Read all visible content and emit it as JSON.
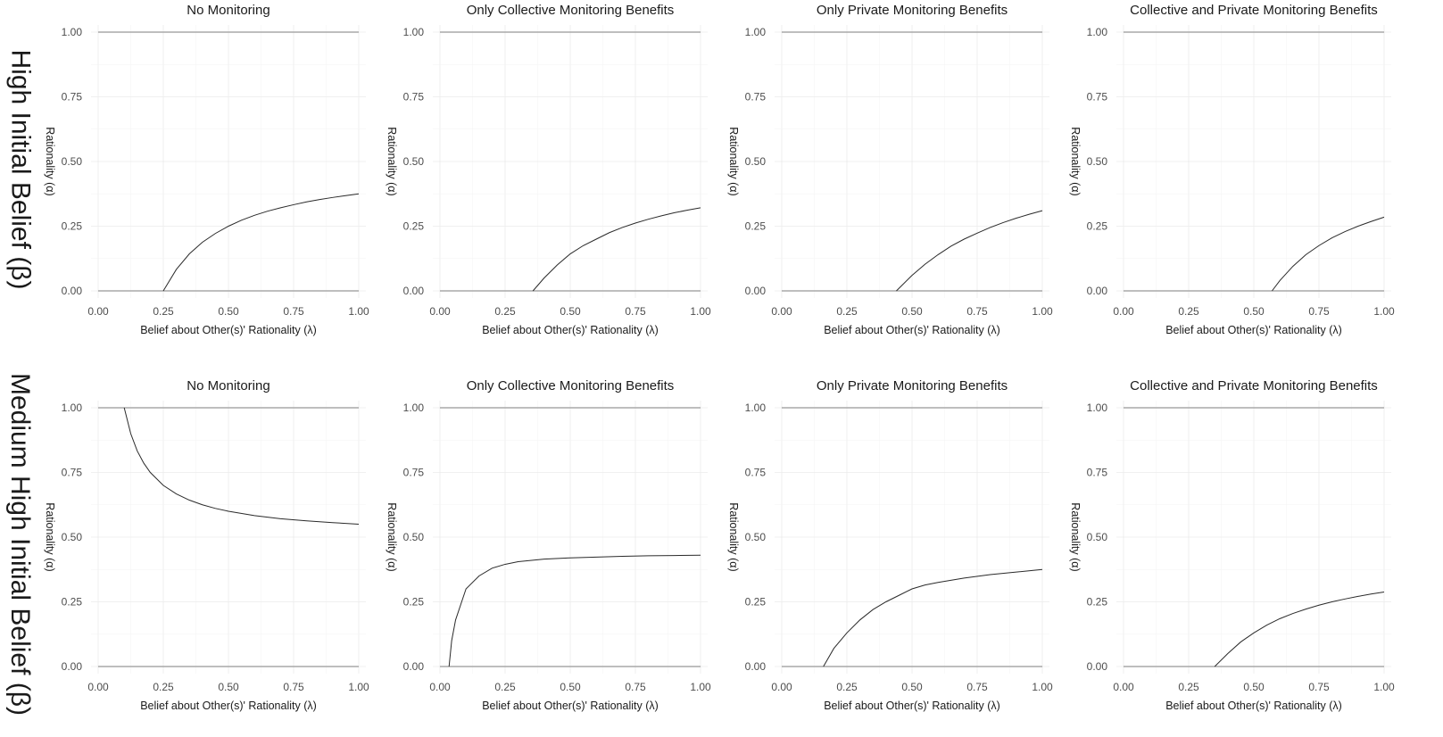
{
  "rows": [
    {
      "label": "High Initial Belief (β)"
    },
    {
      "label": "Medium High Initial Belief (β)"
    }
  ],
  "colors": {
    "curve": "#2a2a2a",
    "boundary": "#a9a9a9",
    "grid": "#ebebeb",
    "text": "#1a1a1a"
  },
  "chart_data": [
    {
      "type": "line",
      "title": "No Monitoring",
      "xlabel": "Belief about Other(s)' Rationality (λ)",
      "ylabel": "Rationality (α)",
      "xlim": [
        0,
        1
      ],
      "ylim": [
        0,
        1
      ],
      "xticks": [
        "0.00",
        "0.25",
        "0.50",
        "0.75",
        "1.00"
      ],
      "yticks": [
        "0.00",
        "0.25",
        "0.50",
        "0.75",
        "1.00"
      ],
      "boundaries": [
        0,
        1
      ],
      "series": [
        {
          "x": [
            0.25,
            0.3,
            0.35,
            0.4,
            0.45,
            0.5,
            0.55,
            0.6,
            0.65,
            0.7,
            0.75,
            0.8,
            0.85,
            0.9,
            0.95,
            1.0
          ],
          "y": [
            0.0,
            0.083,
            0.143,
            0.188,
            0.222,
            0.25,
            0.273,
            0.292,
            0.308,
            0.321,
            0.333,
            0.344,
            0.353,
            0.361,
            0.368,
            0.375
          ]
        }
      ]
    },
    {
      "type": "line",
      "title": "Only Collective Monitoring Benefits",
      "xlabel": "Belief about Other(s)' Rationality (λ)",
      "ylabel": "Rationality (α)",
      "xlim": [
        0,
        1
      ],
      "ylim": [
        0,
        1
      ],
      "xticks": [
        "0.00",
        "0.25",
        "0.50",
        "0.75",
        "1.00"
      ],
      "yticks": [
        "0.00",
        "0.25",
        "0.50",
        "0.75",
        "1.00"
      ],
      "boundaries": [
        0,
        1
      ],
      "series": [
        {
          "x": [
            0.357,
            0.4,
            0.45,
            0.5,
            0.55,
            0.6,
            0.65,
            0.7,
            0.75,
            0.8,
            0.85,
            0.9,
            0.95,
            1.0
          ],
          "y": [
            0.0,
            0.05,
            0.1,
            0.143,
            0.175,
            0.2,
            0.225,
            0.245,
            0.262,
            0.277,
            0.29,
            0.302,
            0.312,
            0.321
          ]
        }
      ]
    },
    {
      "type": "line",
      "title": "Only Private Monitoring Benefits",
      "xlabel": "Belief about Other(s)' Rationality (λ)",
      "ylabel": "Rationality (α)",
      "xlim": [
        0,
        1
      ],
      "ylim": [
        0,
        1
      ],
      "xticks": [
        "0.00",
        "0.25",
        "0.50",
        "0.75",
        "1.00"
      ],
      "yticks": [
        "0.00",
        "0.25",
        "0.50",
        "0.75",
        "1.00"
      ],
      "boundaries": [
        0,
        1
      ],
      "series": [
        {
          "x": [
            0.44,
            0.5,
            0.55,
            0.6,
            0.65,
            0.7,
            0.75,
            0.8,
            0.85,
            0.9,
            0.95,
            1.0
          ],
          "y": [
            0.0,
            0.06,
            0.103,
            0.14,
            0.173,
            0.2,
            0.223,
            0.245,
            0.264,
            0.281,
            0.296,
            0.31
          ]
        }
      ]
    },
    {
      "type": "line",
      "title": "Collective and Private Monitoring Benefits",
      "xlabel": "Belief about Other(s)' Rationality (λ)",
      "ylabel": "Rationality (α)",
      "xlim": [
        0,
        1
      ],
      "ylim": [
        0,
        1
      ],
      "xticks": [
        "0.00",
        "0.25",
        "0.50",
        "0.75",
        "1.00"
      ],
      "yticks": [
        "0.00",
        "0.25",
        "0.50",
        "0.75",
        "1.00"
      ],
      "boundaries": [
        0,
        1
      ],
      "series": [
        {
          "x": [
            0.57,
            0.6,
            0.65,
            0.7,
            0.75,
            0.8,
            0.85,
            0.9,
            0.95,
            1.0
          ],
          "y": [
            0.0,
            0.04,
            0.095,
            0.14,
            0.175,
            0.205,
            0.229,
            0.25,
            0.268,
            0.285
          ]
        }
      ]
    },
    {
      "type": "line",
      "title": "No Monitoring",
      "xlabel": "Belief about Other(s)' Rationality (λ)",
      "ylabel": "Rationality (α)",
      "xlim": [
        0,
        1
      ],
      "ylim": [
        0,
        1
      ],
      "xticks": [
        "0.00",
        "0.25",
        "0.50",
        "0.75",
        "1.00"
      ],
      "yticks": [
        "0.00",
        "0.25",
        "0.50",
        "0.75",
        "1.00"
      ],
      "boundaries": [
        0,
        1
      ],
      "series": [
        {
          "x": [
            0.1,
            0.125,
            0.15,
            0.175,
            0.2,
            0.25,
            0.3,
            0.35,
            0.4,
            0.45,
            0.5,
            0.6,
            0.7,
            0.8,
            0.9,
            1.0
          ],
          "y": [
            1.0,
            0.9,
            0.833,
            0.786,
            0.75,
            0.7,
            0.667,
            0.643,
            0.625,
            0.611,
            0.6,
            0.583,
            0.571,
            0.563,
            0.556,
            0.55
          ]
        }
      ]
    },
    {
      "type": "line",
      "title": "Only Collective Monitoring Benefits",
      "xlabel": "Belief about Other(s)' Rationality (λ)",
      "ylabel": "Rationality (α)",
      "xlim": [
        0,
        1
      ],
      "ylim": [
        0,
        1
      ],
      "xticks": [
        "0.00",
        "0.25",
        "0.50",
        "0.75",
        "1.00"
      ],
      "yticks": [
        "0.00",
        "0.25",
        "0.50",
        "0.75",
        "1.00"
      ],
      "boundaries": [
        0,
        1
      ],
      "series": [
        {
          "x": [
            0.035,
            0.045,
            0.06,
            0.08,
            0.1,
            0.15,
            0.2,
            0.25,
            0.3,
            0.4,
            0.5,
            0.6,
            0.7,
            0.8,
            0.9,
            1.0
          ],
          "y": [
            0.0,
            0.1,
            0.18,
            0.24,
            0.3,
            0.35,
            0.38,
            0.395,
            0.405,
            0.415,
            0.42,
            0.423,
            0.426,
            0.428,
            0.429,
            0.43
          ]
        }
      ]
    },
    {
      "type": "line",
      "title": "Only Private Monitoring Benefits",
      "xlabel": "Belief about Other(s)' Rationality (λ)",
      "ylabel": "Rationality (α)",
      "xlim": [
        0,
        1
      ],
      "ylim": [
        0,
        1
      ],
      "xticks": [
        "0.00",
        "0.25",
        "0.50",
        "0.75",
        "1.00"
      ],
      "yticks": [
        "0.00",
        "0.25",
        "0.50",
        "0.75",
        "1.00"
      ],
      "boundaries": [
        0,
        1
      ],
      "series": [
        {
          "x": [
            0.16,
            0.2,
            0.25,
            0.3,
            0.35,
            0.4,
            0.45,
            0.5,
            0.55,
            0.6,
            0.7,
            0.8,
            0.9,
            1.0
          ],
          "y": [
            0.0,
            0.07,
            0.13,
            0.18,
            0.22,
            0.25,
            0.275,
            0.3,
            0.315,
            0.325,
            0.342,
            0.355,
            0.365,
            0.375
          ]
        }
      ]
    },
    {
      "type": "line",
      "title": "Collective and Private Monitoring Benefits",
      "xlabel": "Belief about Other(s)' Rationality (λ)",
      "ylabel": "Rationality (α)",
      "xlim": [
        0,
        1
      ],
      "ylim": [
        0,
        1
      ],
      "xticks": [
        "0.00",
        "0.25",
        "0.50",
        "0.75",
        "1.00"
      ],
      "yticks": [
        "0.00",
        "0.25",
        "0.50",
        "0.75",
        "1.00"
      ],
      "boundaries": [
        0,
        1
      ],
      "series": [
        {
          "x": [
            0.35,
            0.4,
            0.45,
            0.5,
            0.55,
            0.6,
            0.65,
            0.7,
            0.75,
            0.8,
            0.85,
            0.9,
            0.95,
            1.0
          ],
          "y": [
            0.0,
            0.05,
            0.095,
            0.13,
            0.16,
            0.185,
            0.205,
            0.222,
            0.237,
            0.25,
            0.261,
            0.271,
            0.28,
            0.288
          ]
        }
      ]
    }
  ]
}
